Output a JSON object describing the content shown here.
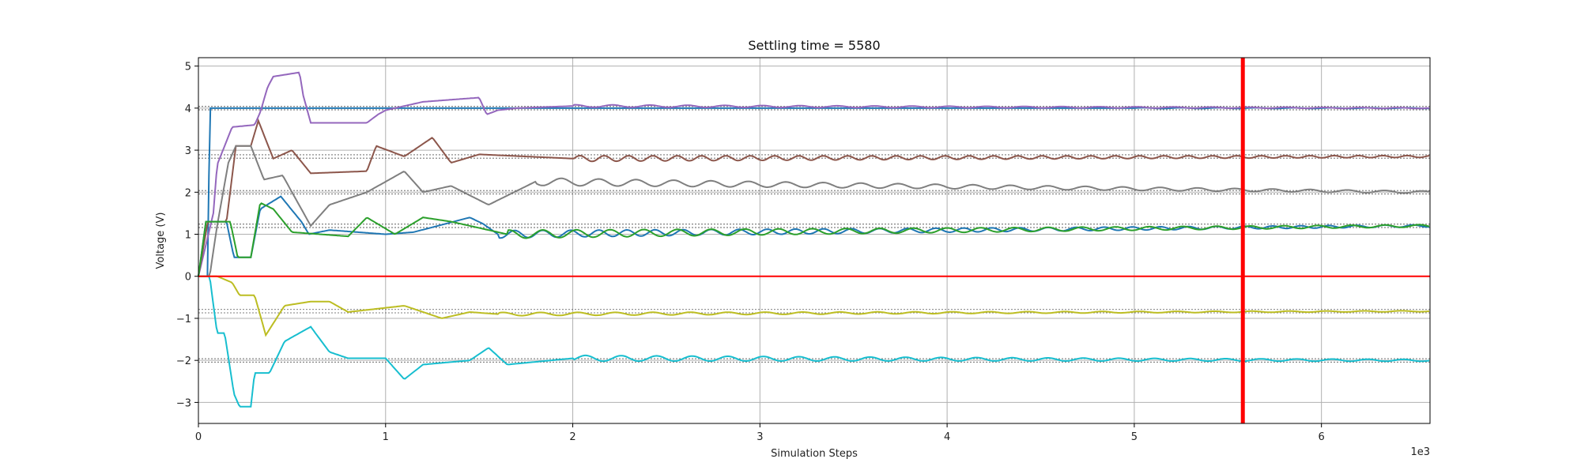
{
  "chart_data": {
    "type": "line",
    "title": "Settling time = 5580",
    "xlabel": "Simulation Steps",
    "ylabel": "Voltage (V)",
    "x_multiplier_label": "1e3",
    "xlim": [
      0,
      6580
    ],
    "ylim": [
      -3.5,
      5.2
    ],
    "xticks": [
      0,
      1000,
      2000,
      3000,
      4000,
      5000,
      6000
    ],
    "xtick_labels": [
      "0",
      "1",
      "2",
      "3",
      "4",
      "5",
      "6"
    ],
    "yticks": [
      -3,
      -2,
      -1,
      0,
      1,
      2,
      3,
      4,
      5
    ],
    "ytick_labels": [
      "−3",
      "−2",
      "−1",
      "0",
      "1",
      "2",
      "3",
      "4",
      "5"
    ],
    "grid": true,
    "settling_time": 5580,
    "settling_color": "#ff0000",
    "zero_line_color": "#ff0000",
    "series": [
      {
        "color": "#1f77b4",
        "target": 4.0,
        "x": [
          0,
          50,
          60,
          5000,
          6580
        ],
        "y": [
          0,
          0,
          4.0,
          4.0,
          4.0
        ],
        "osc_amp": 0.01,
        "osc_period": 200
      },
      {
        "color": "#9467bd",
        "target": 4.0,
        "x": [
          0,
          80,
          100,
          180,
          300,
          330,
          370,
          400,
          540,
          560,
          600,
          900,
          960,
          1000,
          1200,
          1500,
          1540,
          1600,
          1700,
          2000,
          6580
        ],
        "y": [
          0,
          1.5,
          2.65,
          3.55,
          3.6,
          3.9,
          4.5,
          4.75,
          4.85,
          4.3,
          3.65,
          3.65,
          3.85,
          3.95,
          4.15,
          4.25,
          3.85,
          3.95,
          4.0,
          4.05,
          4.0
        ],
        "osc_amp": 0.03,
        "osc_period": 200
      },
      {
        "color": "#8c564b",
        "target": 2.85,
        "x": [
          0,
          50,
          150,
          200,
          280,
          320,
          400,
          500,
          600,
          900,
          950,
          1100,
          1250,
          1350,
          1500,
          2000,
          6580
        ],
        "y": [
          0,
          1.3,
          1.3,
          3.1,
          3.1,
          3.7,
          2.8,
          3.0,
          2.45,
          2.5,
          3.1,
          2.85,
          3.3,
          2.7,
          2.9,
          2.8,
          2.85
        ],
        "osc_amp": 0.07,
        "osc_period": 130
      },
      {
        "color": "#7f7f7f",
        "target": 2.0,
        "x": [
          0,
          60,
          100,
          160,
          200,
          280,
          350,
          450,
          600,
          700,
          900,
          1100,
          1200,
          1350,
          1550,
          1800,
          6580
        ],
        "y": [
          0,
          0,
          1.2,
          2.7,
          3.1,
          3.1,
          2.3,
          2.4,
          1.2,
          1.7,
          2.0,
          2.5,
          2.0,
          2.15,
          1.7,
          2.25,
          2.0
        ],
        "osc_amp": 0.09,
        "osc_period": 200
      },
      {
        "color": "#1f77b4",
        "target": 1.2,
        "x": [
          0,
          40,
          150,
          190,
          280,
          330,
          440,
          550,
          590,
          700,
          850,
          1000,
          1150,
          1450,
          1520,
          1600,
          6580
        ],
        "y": [
          0,
          1.3,
          1.3,
          0.45,
          0.45,
          1.6,
          1.9,
          1.3,
          1.0,
          1.1,
          1.05,
          1.0,
          1.05,
          1.4,
          1.25,
          1.0,
          1.2
        ],
        "osc_amp": 0.09,
        "osc_period": 150
      },
      {
        "color": "#2ca02c",
        "target": 1.2,
        "x": [
          0,
          40,
          170,
          210,
          280,
          330,
          400,
          500,
          800,
          900,
          1050,
          1200,
          1350,
          1650,
          6580
        ],
        "y": [
          0,
          1.3,
          1.3,
          0.45,
          0.45,
          1.75,
          1.6,
          1.05,
          0.95,
          1.4,
          1.0,
          1.4,
          1.3,
          1.0,
          1.2
        ],
        "osc_amp": 0.1,
        "osc_period": 180
      },
      {
        "color": "#bcbd22",
        "target": -0.83,
        "x": [
          0,
          100,
          180,
          220,
          300,
          360,
          460,
          600,
          700,
          800,
          1100,
          1300,
          1450,
          1600,
          6580
        ],
        "y": [
          0,
          0,
          -0.15,
          -0.45,
          -0.45,
          -1.4,
          -0.7,
          -0.6,
          -0.6,
          -0.85,
          -0.7,
          -1.0,
          -0.85,
          -0.9,
          -0.83
        ],
        "osc_amp": 0.04,
        "osc_period": 200
      },
      {
        "color": "#17becf",
        "target": -2.0,
        "x": [
          0,
          60,
          100,
          140,
          190,
          220,
          280,
          300,
          380,
          460,
          600,
          700,
          800,
          1000,
          1100,
          1200,
          1450,
          1550,
          1650,
          2000,
          6580
        ],
        "y": [
          0,
          0,
          -1.35,
          -1.35,
          -2.8,
          -3.1,
          -3.1,
          -2.3,
          -2.3,
          -1.55,
          -1.2,
          -1.8,
          -1.95,
          -1.95,
          -2.45,
          -2.1,
          -2.0,
          -1.7,
          -2.1,
          -1.95,
          -2.0
        ],
        "osc_amp": 0.07,
        "osc_period": 190
      }
    ]
  }
}
